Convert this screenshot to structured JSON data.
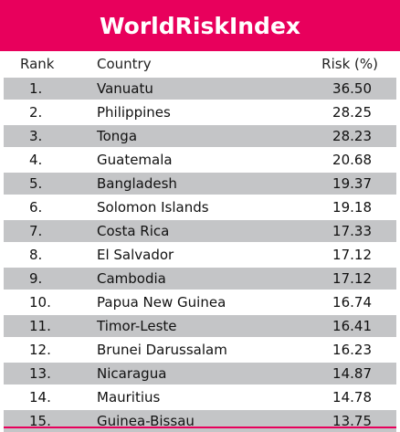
{
  "title": "WorldRiskIndex",
  "headers": {
    "rank": "Rank",
    "country": "Country",
    "risk": "Risk (%)"
  },
  "rows": [
    {
      "rank": "1.",
      "country": "Vanuatu",
      "risk": "36.50"
    },
    {
      "rank": "2.",
      "country": "Philippines",
      "risk": "28.25"
    },
    {
      "rank": "3.",
      "country": "Tonga",
      "risk": "28.23"
    },
    {
      "rank": "4.",
      "country": "Guatemala",
      "risk": "20.68"
    },
    {
      "rank": "5.",
      "country": "Bangladesh",
      "risk": "19.37"
    },
    {
      "rank": "6.",
      "country": "Solomon Islands",
      "risk": "19.18"
    },
    {
      "rank": "7.",
      "country": "Costa Rica",
      "risk": "17.33"
    },
    {
      "rank": "8.",
      "country": "El Salvador",
      "risk": "17.12"
    },
    {
      "rank": "9.",
      "country": "Cambodia",
      "risk": "17.12"
    },
    {
      "rank": "10.",
      "country": "Papua New Guinea",
      "risk": "16.74"
    },
    {
      "rank": "11.",
      "country": "Timor-Leste",
      "risk": "16.41"
    },
    {
      "rank": "12.",
      "country": "Brunei Darussalam",
      "risk": "16.23"
    },
    {
      "rank": "13.",
      "country": "Nicaragua",
      "risk": "14.87"
    },
    {
      "rank": "14.",
      "country": "Mauritius",
      "risk": "14.78"
    },
    {
      "rank": "15.",
      "country": "Guinea-Bissau",
      "risk": "13.75"
    }
  ],
  "colors": {
    "title_background": "#e8005c",
    "title_text": "#ffffff",
    "row_shade": "#c4c5c7"
  }
}
